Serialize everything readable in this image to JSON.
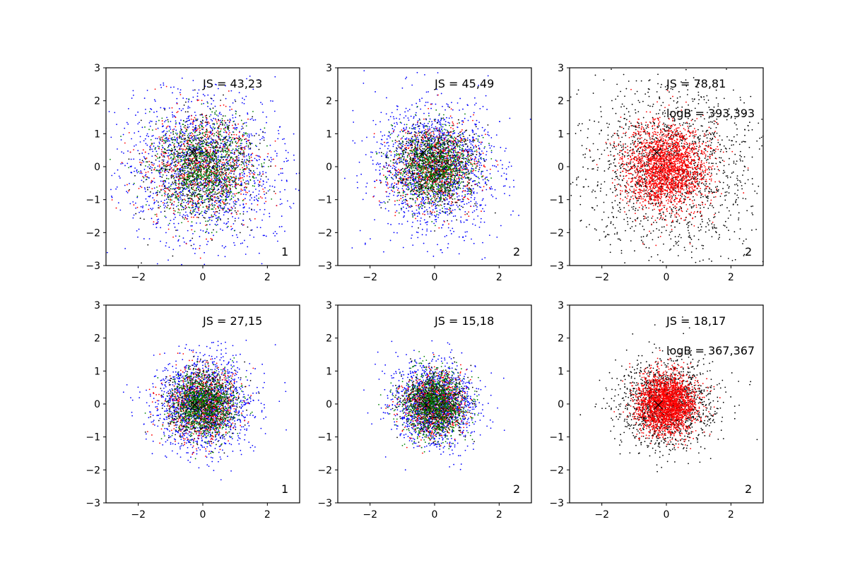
{
  "figure": {
    "background": "#ffffff",
    "grid": false
  },
  "chart_data": [
    {
      "type": "scatter",
      "xlim": [
        -3,
        3
      ],
      "ylim": [
        -3,
        3
      ],
      "xticks": [
        -2,
        0,
        2
      ],
      "yticks": [
        -3,
        -2,
        -1,
        0,
        1,
        2,
        3
      ],
      "tick_labels_x": [
        "−2",
        "0",
        "2"
      ],
      "tick_labels_y": [
        "−3",
        "−2",
        "−1",
        "0",
        "1",
        "2",
        "3"
      ],
      "annotations": [
        "JS = 43,23"
      ],
      "panel_label": "1",
      "marker": {
        "x": -0.3,
        "y": 0.43,
        "symbol": "x",
        "color": "#000000"
      },
      "series": [
        {
          "color": "#0000ff",
          "center": [
            0.0,
            0.0
          ],
          "std": [
            1.2,
            1.15
          ],
          "count": 1600
        },
        {
          "color": "#ff0000",
          "center": [
            0.0,
            0.0
          ],
          "std": [
            0.85,
            0.8
          ],
          "count": 750
        },
        {
          "color": "#000000",
          "center": [
            0.0,
            0.0
          ],
          "std": [
            0.8,
            0.8
          ],
          "count": 650
        },
        {
          "color": "#008000",
          "center": [
            0.0,
            0.0
          ],
          "std": [
            0.75,
            0.75
          ],
          "count": 900
        }
      ]
    },
    {
      "type": "scatter",
      "xlim": [
        -3,
        3
      ],
      "ylim": [
        -3,
        3
      ],
      "xticks": [
        -2,
        0,
        2
      ],
      "yticks": [
        -3,
        -2,
        -1,
        0,
        1,
        2,
        3
      ],
      "tick_labels_x": [
        "−2",
        "0",
        "2"
      ],
      "tick_labels_y": [
        "−3",
        "−2",
        "−1",
        "0",
        "1",
        "2",
        "3"
      ],
      "annotations": [
        "JS = 45,49"
      ],
      "panel_label": "2",
      "marker": {
        "x": -0.35,
        "y": 0.43,
        "symbol": "x",
        "color": "#000000"
      },
      "series": [
        {
          "color": "#0000ff",
          "center": [
            0.0,
            0.0
          ],
          "std": [
            0.95,
            0.95
          ],
          "count": 1600
        },
        {
          "color": "#ff0000",
          "center": [
            0.0,
            0.0
          ],
          "std": [
            0.65,
            0.65
          ],
          "count": 750
        },
        {
          "color": "#000000",
          "center": [
            0.0,
            0.0
          ],
          "std": [
            0.6,
            0.6
          ],
          "count": 650
        },
        {
          "color": "#008000",
          "center": [
            0.0,
            0.0
          ],
          "std": [
            0.6,
            0.6
          ],
          "count": 900
        }
      ]
    },
    {
      "type": "scatter",
      "xlim": [
        -3,
        3
      ],
      "ylim": [
        -3,
        3
      ],
      "xticks": [
        -2,
        0,
        2
      ],
      "yticks": [
        -3,
        -2,
        -1,
        0,
        1,
        2,
        3
      ],
      "tick_labels_x": [
        "−2",
        "0",
        "2"
      ],
      "tick_labels_y": [
        "−3",
        "−2",
        "−1",
        "0",
        "1",
        "2",
        "3"
      ],
      "annotations": [
        "JS = 78,81",
        "logB = 393,393"
      ],
      "panel_label": "2",
      "marker": {
        "x": -0.3,
        "y": 0.43,
        "symbol": "x",
        "color": "#000000"
      },
      "series": [
        {
          "color": "#000000",
          "center": [
            0.0,
            0.0
          ],
          "std": [
            1.3,
            1.25
          ],
          "count": 1600
        },
        {
          "color": "#ff0000",
          "center": [
            0.0,
            0.0
          ],
          "std": [
            0.65,
            0.65
          ],
          "count": 2200
        }
      ]
    },
    {
      "type": "scatter",
      "xlim": [
        -3,
        3
      ],
      "ylim": [
        -3,
        3
      ],
      "xticks": [
        -2,
        0,
        2
      ],
      "yticks": [
        -3,
        -2,
        -1,
        0,
        1,
        2,
        3
      ],
      "tick_labels_x": [
        "−2",
        "0",
        "2"
      ],
      "tick_labels_y": [
        "−3",
        "−2",
        "−1",
        "0",
        "1",
        "2",
        "3"
      ],
      "annotations": [
        "JS = 27,15"
      ],
      "panel_label": "1",
      "marker": {
        "x": -0.25,
        "y": -0.03,
        "symbol": "x",
        "color": "#000000"
      },
      "series": [
        {
          "color": "#0000ff",
          "center": [
            0.0,
            0.0
          ],
          "std": [
            0.75,
            0.7
          ],
          "count": 1600
        },
        {
          "color": "#ff0000",
          "center": [
            0.0,
            0.0
          ],
          "std": [
            0.55,
            0.55
          ],
          "count": 750
        },
        {
          "color": "#000000",
          "center": [
            0.0,
            0.0
          ],
          "std": [
            0.5,
            0.5
          ],
          "count": 650
        },
        {
          "color": "#008000",
          "center": [
            0.0,
            0.0
          ],
          "std": [
            0.5,
            0.5
          ],
          "count": 900
        }
      ]
    },
    {
      "type": "scatter",
      "xlim": [
        -3,
        3
      ],
      "ylim": [
        -3,
        3
      ],
      "xticks": [
        -2,
        0,
        2
      ],
      "yticks": [
        -3,
        -2,
        -1,
        0,
        1,
        2,
        3
      ],
      "tick_labels_x": [
        "−2",
        "0",
        "2"
      ],
      "tick_labels_y": [
        "−3",
        "−2",
        "−1",
        "0",
        "1",
        "2",
        "3"
      ],
      "annotations": [
        "JS = 15,18"
      ],
      "panel_label": "2",
      "marker": {
        "x": -0.25,
        "y": -0.03,
        "symbol": "x",
        "color": "#000000"
      },
      "series": [
        {
          "color": "#0000ff",
          "center": [
            0.0,
            0.0
          ],
          "std": [
            0.6,
            0.6
          ],
          "count": 1600
        },
        {
          "color": "#ff0000",
          "center": [
            0.0,
            0.0
          ],
          "std": [
            0.45,
            0.45
          ],
          "count": 750
        },
        {
          "color": "#000000",
          "center": [
            0.0,
            0.0
          ],
          "std": [
            0.45,
            0.45
          ],
          "count": 650
        },
        {
          "color": "#008000",
          "center": [
            0.0,
            0.0
          ],
          "std": [
            0.5,
            0.5
          ],
          "count": 900
        }
      ]
    },
    {
      "type": "scatter",
      "xlim": [
        -3,
        3
      ],
      "ylim": [
        -3,
        3
      ],
      "xticks": [
        -2,
        0,
        2
      ],
      "yticks": [
        -3,
        -2,
        -1,
        0,
        1,
        2,
        3
      ],
      "tick_labels_x": [
        "−2",
        "0",
        "2"
      ],
      "tick_labels_y": [
        "−3",
        "−2",
        "−1",
        "0",
        "1",
        "2",
        "3"
      ],
      "annotations": [
        "JS = 18,17",
        "logB = 367,367"
      ],
      "panel_label": "2",
      "marker": {
        "x": -0.25,
        "y": -0.03,
        "symbol": "x",
        "color": "#000000"
      },
      "series": [
        {
          "color": "#000000",
          "center": [
            0.0,
            0.0
          ],
          "std": [
            0.7,
            0.7
          ],
          "count": 1400
        },
        {
          "color": "#ff0000",
          "center": [
            0.0,
            0.0
          ],
          "std": [
            0.45,
            0.45
          ],
          "count": 2400
        }
      ]
    }
  ]
}
